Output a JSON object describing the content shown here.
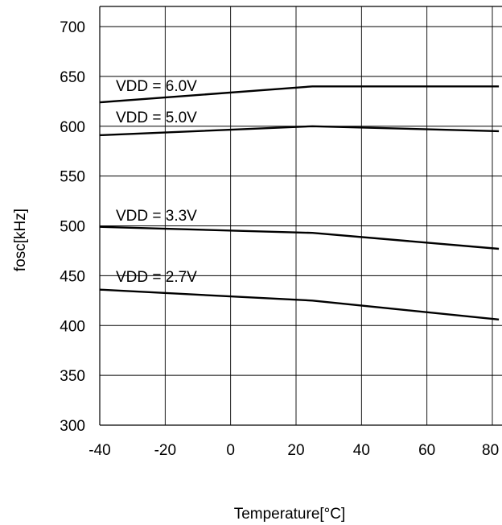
{
  "chart_data": {
    "type": "line",
    "title": "",
    "xlabel": "Temperature[°C]",
    "ylabel": "fosc[kHz]",
    "xlim": [
      -40,
      82
    ],
    "ylim": [
      300,
      710
    ],
    "x_ticks": [
      -40,
      -20,
      0,
      20,
      40,
      60,
      80
    ],
    "x_tick_labels": [
      "-40",
      "-20",
      "0",
      "20",
      "40",
      "60",
      "80"
    ],
    "y_ticks": [
      300,
      350,
      400,
      450,
      500,
      550,
      600,
      650,
      700
    ],
    "y_tick_labels": [
      "300",
      "350",
      "400",
      "450",
      "500",
      "550",
      "600",
      "650",
      "700"
    ],
    "grid": true,
    "line_color": "#000000",
    "series": [
      {
        "name": "VDD = 6.0V",
        "x": [
          -40,
          25,
          82
        ],
        "y": [
          624,
          640,
          640
        ]
      },
      {
        "name": "VDD = 5.0V",
        "x": [
          -40,
          25,
          82
        ],
        "y": [
          591,
          600,
          595
        ]
      },
      {
        "name": "VDD = 3.3V",
        "x": [
          -40,
          25,
          82
        ],
        "y": [
          499,
          493,
          477
        ]
      },
      {
        "name": "VDD = 2.7V",
        "x": [
          -40,
          25,
          82
        ],
        "y": [
          436,
          425,
          406
        ]
      }
    ]
  }
}
